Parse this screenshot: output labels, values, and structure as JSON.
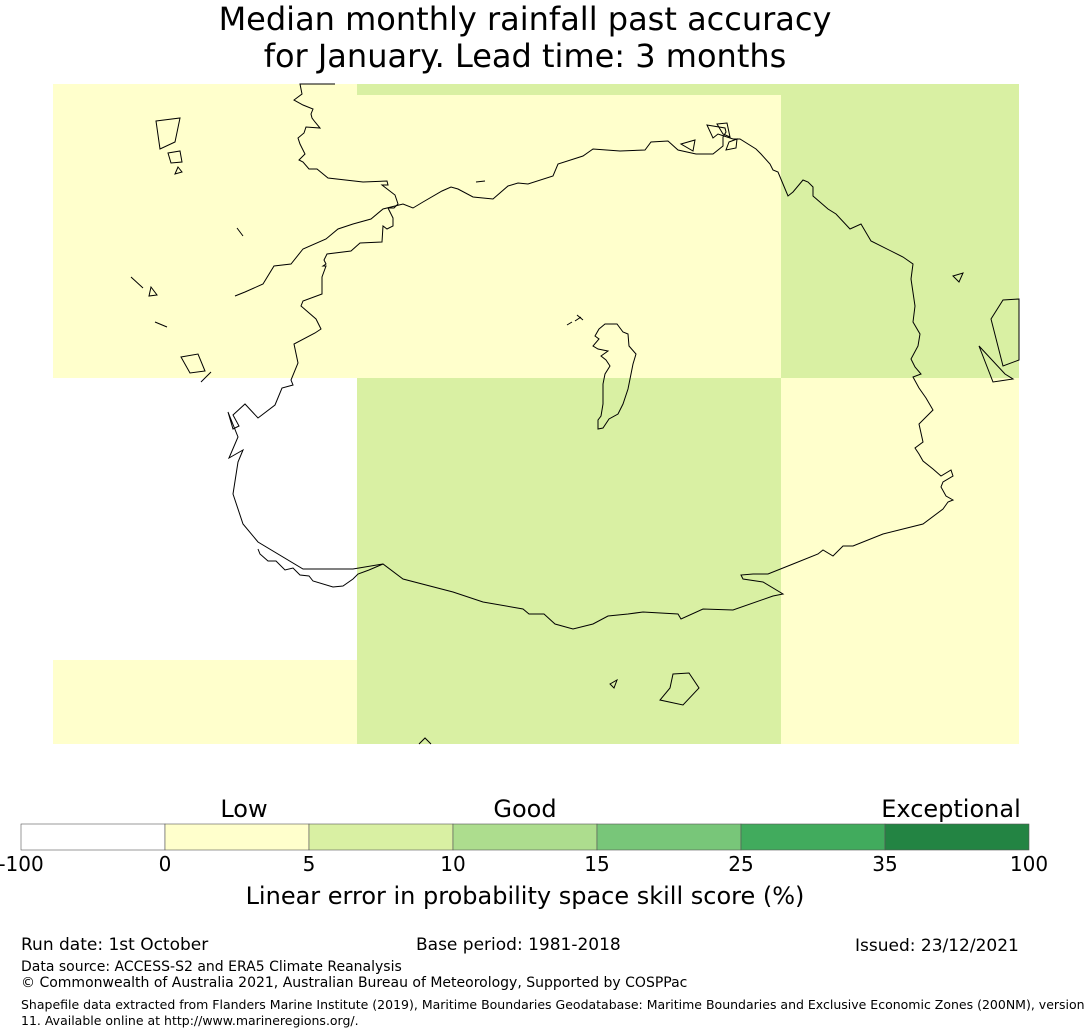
{
  "title": {
    "line1": "Median monthly rainfall past accuracy",
    "line2": "for January. Lead time: 3 months"
  },
  "map": {
    "cells": [
      {
        "row": 0,
        "col": 0,
        "category": "low"
      },
      {
        "row": 0,
        "col": 1,
        "category": "low"
      },
      {
        "row": 0,
        "col": 2,
        "category": "good"
      },
      {
        "row": 1,
        "col": 0,
        "category": "none"
      },
      {
        "row": 1,
        "col": 1,
        "category": "good"
      },
      {
        "row": 1,
        "col": 2,
        "category": "low"
      },
      {
        "row": 2,
        "col": 0,
        "category": "low"
      },
      {
        "row": 2,
        "col": 1,
        "category": "good"
      },
      {
        "row": 2,
        "col": 2,
        "category": "low"
      }
    ]
  },
  "legend": {
    "category_labels": {
      "low": "Low",
      "good": "Good",
      "exceptional": "Exceptional"
    },
    "ticks": [
      "-100",
      "0",
      "5",
      "10",
      "15",
      "25",
      "35",
      "100"
    ],
    "colors": [
      "#ffffff",
      "#ffffcc",
      "#d9f0a3",
      "#addd8e",
      "#78c679",
      "#41ab5d",
      "#238443"
    ],
    "label": "Linear error in probability space skill score (%)"
  },
  "footer": {
    "run_date": "Run date: 1st October",
    "base_period": "Base period: 1981-2018",
    "issued": "Issued: 23/12/2021",
    "data_source": "Data source: ACCESS-S2 and ERA5 Climate Reanalysis",
    "copyright": "© Commonwealth of Australia 2021, Australian Bureau of Meteorology, Supported by COSPPac",
    "shapefile_line1": "Shapefile data extracted from Flanders Marine Institute (2019), Maritime Boundaries Geodatabase: Maritime Boundaries and Exclusive Economic Zones (200NM), version",
    "shapefile_line2": "11. Available online at http://www.marineregions.org/."
  }
}
